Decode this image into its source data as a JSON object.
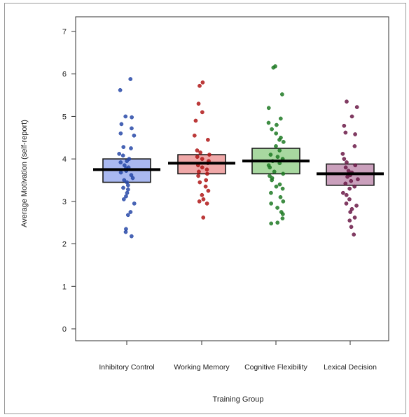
{
  "chart_data": {
    "type": "box-strip",
    "title": "",
    "xlabel": "Training Group",
    "ylabel": "Average Motivation (self-report)",
    "ylim": [
      0,
      7
    ],
    "yticks": [
      0,
      1,
      2,
      3,
      4,
      5,
      6,
      7
    ],
    "grid": false,
    "legend": "none",
    "categories": [
      "Inhibitory Control",
      "Working Memory",
      "Cognitive Flexibility",
      "Lexical Decision"
    ],
    "groups": [
      {
        "name": "Inhibitory Control",
        "mean": 3.75,
        "lower": 3.45,
        "upper": 4.0,
        "fill": "#a9b8f0",
        "point_color": "#2849a8",
        "points": [
          5.88,
          5.62,
          5.0,
          4.98,
          4.82,
          4.72,
          4.6,
          4.55,
          4.28,
          4.25,
          4.12,
          4.08,
          4.0,
          3.95,
          3.92,
          3.85,
          3.8,
          3.78,
          3.72,
          3.68,
          3.62,
          3.55,
          3.5,
          3.45,
          3.38,
          3.32,
          3.28,
          3.2,
          3.12,
          3.05,
          2.95,
          2.75,
          2.68,
          2.35,
          2.28,
          2.18
        ]
      },
      {
        "name": "Working Memory",
        "mean": 3.9,
        "lower": 3.65,
        "upper": 4.1,
        "fill": "#f0a8a8",
        "point_color": "#b01818",
        "points": [
          5.8,
          5.72,
          5.3,
          5.1,
          4.9,
          4.55,
          4.45,
          4.2,
          4.15,
          4.1,
          4.05,
          4.0,
          3.95,
          3.9,
          3.85,
          3.8,
          3.75,
          3.7,
          3.65,
          3.6,
          3.5,
          3.45,
          3.35,
          3.25,
          3.15,
          3.05,
          3.0,
          2.95,
          2.62
        ]
      },
      {
        "name": "Cognitive Flexibility",
        "mean": 3.95,
        "lower": 3.65,
        "upper": 4.25,
        "fill": "#a8d8a0",
        "point_color": "#1f7a24",
        "points": [
          6.18,
          6.15,
          5.52,
          5.2,
          4.95,
          4.85,
          4.8,
          4.7,
          4.6,
          4.5,
          4.45,
          4.4,
          4.3,
          4.2,
          4.1,
          4.05,
          4.0,
          3.95,
          3.9,
          3.85,
          3.8,
          3.7,
          3.65,
          3.6,
          3.55,
          3.5,
          3.4,
          3.35,
          3.3,
          3.2,
          3.1,
          3.0,
          2.95,
          2.85,
          2.75,
          2.7,
          2.6,
          2.5,
          2.48
        ]
      },
      {
        "name": "Lexical Decision",
        "mean": 3.65,
        "lower": 3.38,
        "upper": 3.88,
        "fill": "#caa0bc",
        "point_color": "#6b1a48",
        "points": [
          5.35,
          5.22,
          5.0,
          4.78,
          4.62,
          4.58,
          4.3,
          4.12,
          4.0,
          3.92,
          3.85,
          3.8,
          3.72,
          3.68,
          3.62,
          3.58,
          3.52,
          3.48,
          3.42,
          3.35,
          3.3,
          3.2,
          3.15,
          3.05,
          2.95,
          2.9,
          2.82,
          2.75,
          2.62,
          2.55,
          2.4,
          2.22
        ]
      }
    ]
  }
}
